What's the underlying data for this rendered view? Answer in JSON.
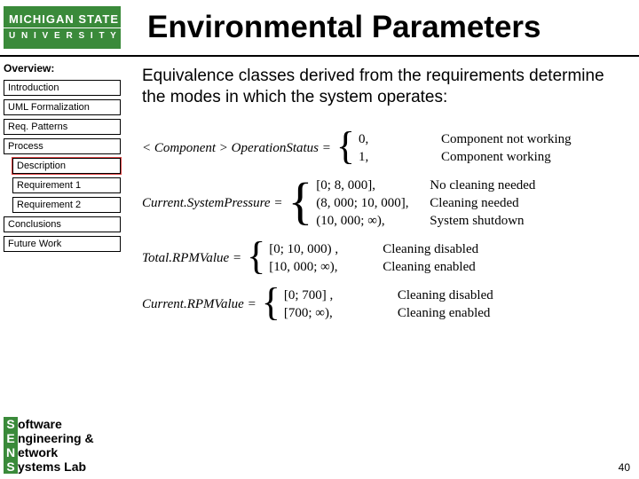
{
  "logo": {
    "line1": "MICHIGAN STATE",
    "line2": "U N I V E R S I T Y"
  },
  "title": "Environmental Parameters",
  "overview_label": "Overview:",
  "nav": {
    "introduction": "Introduction",
    "uml": "UML Formalization",
    "patterns": "Req. Patterns",
    "process": "Process",
    "description": "Description",
    "req1": "Requirement 1",
    "req2": "Requirement 2",
    "conclusions": "Conclusions",
    "future": "Future Work"
  },
  "intro_text": "Equivalence classes derived from the requirements determine the modes in which the system operates:",
  "formulas": {
    "f1": {
      "lhs": "< Component > OperationStatus =",
      "cases": [
        {
          "val": "0,",
          "lbl": "Component not working"
        },
        {
          "val": "1,",
          "lbl": "Component working"
        }
      ]
    },
    "f2": {
      "lhs": "Current.SystemPressure =",
      "cases": [
        {
          "val": "[0; 8, 000],",
          "lbl": "No cleaning needed"
        },
        {
          "val": "(8, 000; 10, 000],",
          "lbl": "Cleaning needed"
        },
        {
          "val": "(10, 000; ∞),",
          "lbl": "System shutdown"
        }
      ]
    },
    "f3": {
      "lhs": "Total.RPMValue =",
      "cases": [
        {
          "val": "[0; 10, 000) ,",
          "lbl": "Cleaning disabled"
        },
        {
          "val": "[10, 000; ∞),",
          "lbl": "Cleaning enabled"
        }
      ]
    },
    "f4": {
      "lhs": "Current.RPMValue =",
      "cases": [
        {
          "val": "[0; 700] ,",
          "lbl": "Cleaning disabled"
        },
        {
          "val": "[700; ∞),",
          "lbl": "Cleaning enabled"
        }
      ]
    }
  },
  "footer": {
    "l1": {
      "cap": "S",
      "rest": "oftware"
    },
    "l2": {
      "cap": "E",
      "rest": "ngineering &"
    },
    "l3": {
      "cap": "N",
      "rest": "etwork"
    },
    "l4": {
      "cap": "S",
      "rest": "ystems Lab"
    }
  },
  "page_number": "40",
  "colors": {
    "brand_green": "#3a8a3a",
    "highlight_red": "#d44",
    "text": "#000000",
    "bg": "#ffffff"
  }
}
